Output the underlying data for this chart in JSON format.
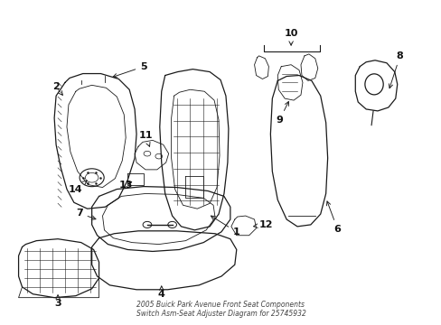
{
  "title": "2005 Buick Park Avenue Front Seat Components\nSwitch Asm-Seat Adjuster Diagram for 25745932",
  "background_color": "#ffffff",
  "line_color": "#1a1a1a",
  "label_color": "#111111",
  "fig_width": 4.89,
  "fig_height": 3.6,
  "dpi": 100
}
